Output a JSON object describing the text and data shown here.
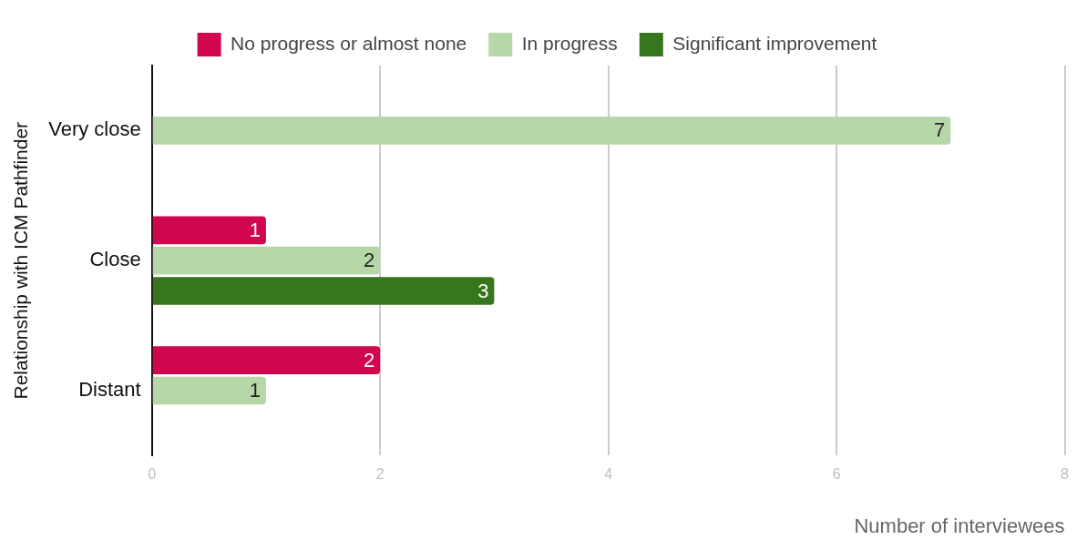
{
  "chart_data": {
    "type": "bar",
    "orientation": "horizontal",
    "xlabel": "Number of interviewees",
    "ylabel": "Relationship with ICM Pathfinder",
    "categories": [
      "Very close",
      "Close",
      "Distant"
    ],
    "series": [
      {
        "name": "No progress or almost none",
        "color": "#d0064e",
        "values": [
          null,
          1,
          2
        ]
      },
      {
        "name": "In progress",
        "color": "#b6d7a8",
        "values": [
          7,
          2,
          1
        ]
      },
      {
        "name": "Significant improvement",
        "color": "#38761d",
        "values": [
          null,
          3,
          null
        ]
      }
    ],
    "xlim": [
      0,
      8
    ],
    "xticks": [
      0,
      2,
      4,
      6,
      8
    ],
    "grid": "x",
    "legend": "top",
    "data_labels": true
  }
}
